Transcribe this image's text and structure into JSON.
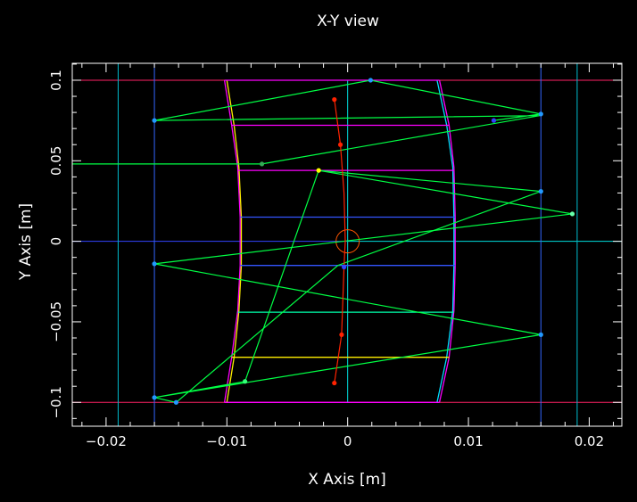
{
  "chart_data": {
    "type": "scatter",
    "title": "X-Y view",
    "xlabel": "X Axis [m]",
    "ylabel": "Y Axis [m]",
    "xlim": [
      -0.0228,
      0.0227
    ],
    "ylim": [
      -0.1148,
      0.1105
    ],
    "grid": false,
    "x_ticks": [
      -0.02,
      -0.01,
      0,
      0.01,
      0.02
    ],
    "x_tick_labels": [
      "−0.02",
      "−0.01",
      "0",
      "0.01",
      "0.02"
    ],
    "y_ticks": [
      -0.1,
      -0.05,
      0,
      0.05,
      0.1
    ],
    "y_tick_labels": [
      "−0.1",
      "−0.05",
      "0",
      "0.05",
      "0.1"
    ],
    "colors": {
      "background": "#000000",
      "frame": "#ffffff",
      "beam": "#00ff44",
      "magenta": "#ff00ff",
      "cyan": "#00dddd",
      "blue": "#3344ff",
      "red": "#ff2200",
      "yellow": "#ffff00",
      "orange": "#ff5500"
    },
    "horizontal_lines": [
      {
        "y": 0.1,
        "x0": -0.0228,
        "x1": 0.0227,
        "color": "#ff2266"
      },
      {
        "y": -0.1,
        "x0": -0.0228,
        "x1": 0.0227,
        "color": "#ff2266"
      },
      {
        "y": 0,
        "x0": -0.0228,
        "x1": 0.0,
        "color": "#3344ff"
      },
      {
        "y": 0,
        "x0": 0.0,
        "x1": 0.0227,
        "color": "#00dddd"
      }
    ],
    "vertical_lines": [
      {
        "x": -0.019,
        "color": "#00bbcc"
      },
      {
        "x": -0.016,
        "color": "#3366ff"
      },
      {
        "x": 0.016,
        "color": "#3366ff"
      },
      {
        "x": 0.019,
        "color": "#00bbcc"
      },
      {
        "x": 0.0,
        "y0": -0.1,
        "y1": 0.1,
        "color": "#00dddd"
      }
    ],
    "shapes": [
      {
        "name": "outer-frame-left",
        "color": "#ff00ff",
        "points": [
          [
            -0.0102,
            0.1
          ],
          [
            -0.0096,
            0.072
          ],
          [
            -0.0091,
            0.046
          ],
          [
            -0.0089,
            0.015
          ],
          [
            -0.0089,
            -0.015
          ],
          [
            -0.0091,
            -0.043
          ],
          [
            -0.0096,
            -0.072
          ],
          [
            -0.0102,
            -0.1
          ]
        ]
      },
      {
        "name": "outer-frame-right",
        "color": "#ff00ff",
        "points": [
          [
            0.0076,
            0.1
          ],
          [
            0.0084,
            0.072
          ],
          [
            0.0088,
            0.046
          ],
          [
            0.0089,
            0.015
          ],
          [
            0.0089,
            -0.015
          ],
          [
            0.0088,
            -0.043
          ],
          [
            0.0084,
            -0.072
          ],
          [
            0.0076,
            -0.1
          ]
        ]
      },
      {
        "name": "inner-frame-left",
        "color": "#ffee00",
        "points": [
          [
            -0.01,
            0.1
          ],
          [
            -0.0094,
            0.072
          ],
          [
            -0.009,
            0.046
          ],
          [
            -0.0088,
            0.015
          ],
          [
            -0.0088,
            -0.015
          ],
          [
            -0.009,
            -0.043
          ],
          [
            -0.0094,
            -0.072
          ],
          [
            -0.01,
            -0.1
          ]
        ]
      },
      {
        "name": "inner-frame-right",
        "color": "#00ddff",
        "points": [
          [
            0.0074,
            0.1
          ],
          [
            0.0082,
            0.072
          ],
          [
            0.0087,
            0.046
          ],
          [
            0.0088,
            0.015
          ],
          [
            0.0088,
            -0.015
          ],
          [
            0.0087,
            -0.043
          ],
          [
            0.0082,
            -0.072
          ],
          [
            0.0074,
            -0.1
          ]
        ]
      },
      {
        "name": "rung-1",
        "color": "#ff00ff",
        "points": [
          [
            -0.0102,
            0.1
          ],
          [
            0.0076,
            0.1
          ]
        ]
      },
      {
        "name": "rung-2",
        "color": "#ff00ff",
        "points": [
          [
            -0.0096,
            0.072
          ],
          [
            0.0084,
            0.072
          ]
        ]
      },
      {
        "name": "rung-3",
        "color": "#ff00ff",
        "points": [
          [
            -0.0091,
            0.044
          ],
          [
            0.0088,
            0.044
          ]
        ]
      },
      {
        "name": "rung-4",
        "color": "#3355ff",
        "points": [
          [
            -0.0089,
            0.015
          ],
          [
            0.0089,
            0.015
          ]
        ]
      },
      {
        "name": "rung-5",
        "color": "#3355ff",
        "points": [
          [
            -0.0089,
            -0.015
          ],
          [
            0.0089,
            -0.015
          ]
        ]
      },
      {
        "name": "rung-6",
        "color": "#00ffaa",
        "points": [
          [
            -0.0091,
            -0.044
          ],
          [
            0.0088,
            -0.044
          ]
        ]
      },
      {
        "name": "rung-7",
        "color": "#ffee00",
        "points": [
          [
            -0.0096,
            -0.072
          ],
          [
            0.0084,
            -0.072
          ]
        ]
      },
      {
        "name": "rung-8",
        "color": "#ff00ff",
        "points": [
          [
            -0.0102,
            -0.1
          ],
          [
            0.0076,
            -0.1
          ]
        ]
      }
    ],
    "series": [
      {
        "color": "#00ff44",
        "points": [
          [
            -0.0228,
            0.048
          ],
          [
            -0.0071,
            0.048
          ],
          [
            0.0159,
            0.078
          ],
          [
            -0.016,
            0.075
          ],
          [
            0.0019,
            0.1
          ],
          [
            0.016,
            0.079
          ],
          [
            0.0121,
            0.075
          ]
        ]
      },
      {
        "color": "#00ff44",
        "points": [
          [
            -0.0024,
            0.044
          ],
          [
            0.0186,
            0.017
          ],
          [
            -0.016,
            -0.014
          ],
          [
            0.016,
            -0.058
          ],
          [
            -0.016,
            -0.097
          ],
          [
            -0.0085,
            -0.087
          ],
          [
            -0.0024,
            0.044
          ]
        ]
      },
      {
        "color": "#00ff44",
        "points": [
          [
            -0.0024,
            0.044
          ],
          [
            0.016,
            0.031
          ],
          [
            -0.0008,
            -0.015
          ],
          [
            -0.0142,
            -0.1
          ],
          [
            -0.016,
            -0.097
          ]
        ]
      },
      {
        "color": "#ff2200",
        "points": [
          [
            -0.0011,
            0.088
          ],
          [
            -0.0006,
            0.06
          ],
          [
            -0.0003,
            0.03
          ],
          [
            -0.0002,
            0.0
          ],
          [
            -0.0003,
            -0.016
          ],
          [
            -0.0005,
            -0.058
          ],
          [
            -0.0011,
            -0.088
          ]
        ]
      }
    ],
    "markers": [
      {
        "x": -0.016,
        "y": 0.075,
        "color": "#2299ff"
      },
      {
        "x": 0.0019,
        "y": 0.1,
        "color": "#2299ff"
      },
      {
        "x": 0.016,
        "y": 0.079,
        "color": "#2299ff"
      },
      {
        "x": 0.0121,
        "y": 0.075,
        "color": "#3344ff"
      },
      {
        "x": -0.0071,
        "y": 0.048,
        "color": "#33aa55"
      },
      {
        "x": -0.0024,
        "y": 0.044,
        "color": "#ffff00"
      },
      {
        "x": 0.016,
        "y": 0.031,
        "color": "#2299ff"
      },
      {
        "x": 0.0186,
        "y": 0.017,
        "color": "#66ffaa"
      },
      {
        "x": -0.016,
        "y": -0.014,
        "color": "#2299ff"
      },
      {
        "x": -0.0003,
        "y": -0.016,
        "color": "#3344ff"
      },
      {
        "x": 0.016,
        "y": -0.058,
        "color": "#2299ff"
      },
      {
        "x": -0.0085,
        "y": -0.087,
        "color": "#33ff77"
      },
      {
        "x": -0.016,
        "y": -0.097,
        "color": "#2299ff"
      },
      {
        "x": -0.0142,
        "y": -0.1,
        "color": "#2299ff"
      },
      {
        "x": -0.0011,
        "y": 0.088,
        "color": "#ff2200"
      },
      {
        "x": -0.0006,
        "y": 0.06,
        "color": "#ff2200"
      },
      {
        "x": -0.0005,
        "y": -0.058,
        "color": "#ff2200"
      },
      {
        "x": -0.0011,
        "y": -0.088,
        "color": "#ff2200"
      }
    ],
    "circle": {
      "cx": 0.0,
      "cy": 0.0,
      "r": 0.001,
      "color": "#ff5500"
    }
  }
}
